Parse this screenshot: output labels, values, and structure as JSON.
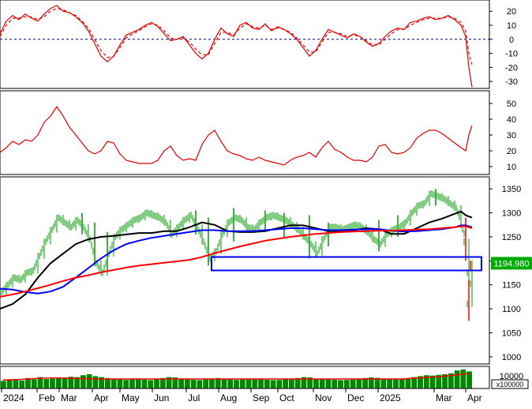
{
  "chart_data": [
    {
      "panel": "oscillator-top",
      "type": "line",
      "ylim": [
        -35,
        28
      ],
      "y_ticks": [
        "20",
        "10",
        "0",
        "-10",
        "-20",
        "-30"
      ],
      "y_tick_values": [
        20,
        10,
        0,
        -10,
        -20,
        -30
      ],
      "zero_line": "dashed",
      "series": [
        {
          "style": "solid",
          "color": "#e00000",
          "x": [
            0,
            8,
            16,
            24,
            32,
            40,
            48,
            56,
            64,
            72,
            80,
            88,
            96,
            104,
            112,
            120,
            128,
            136,
            144,
            152,
            160,
            168,
            176,
            184,
            192,
            200,
            208,
            216,
            224,
            232,
            240,
            248,
            256,
            264,
            272,
            280,
            288,
            296,
            304,
            312,
            320,
            328,
            336,
            344,
            352,
            360,
            368,
            376,
            384,
            392,
            400,
            408,
            416,
            424,
            432,
            440,
            448,
            456,
            464,
            472,
            480,
            488,
            496,
            504,
            512,
            520,
            528,
            536,
            544,
            552,
            560,
            568,
            576,
            584,
            590,
            594,
            598
          ],
          "values": [
            4,
            13,
            17,
            14,
            18,
            15,
            13,
            18,
            22,
            24,
            20,
            19,
            16,
            12,
            6,
            -3,
            -12,
            -16,
            -12,
            -4,
            3,
            5,
            7,
            10,
            12,
            9,
            4,
            -1,
            0,
            2,
            -4,
            -10,
            -14,
            -10,
            0,
            8,
            4,
            2,
            10,
            12,
            8,
            7,
            11,
            6,
            9,
            7,
            4,
            0,
            -6,
            -12,
            -8,
            0,
            7,
            5,
            3,
            1,
            4,
            2,
            -2,
            -5,
            -3,
            2,
            6,
            8,
            7,
            12,
            13,
            15,
            16,
            14,
            15,
            17,
            14,
            10,
            2,
            -20,
            -34
          ]
        },
        {
          "style": "dashed",
          "color": "#e00000",
          "x": [
            0,
            8,
            16,
            24,
            32,
            40,
            48,
            56,
            64,
            72,
            80,
            88,
            96,
            104,
            112,
            120,
            128,
            136,
            144,
            152,
            160,
            168,
            176,
            184,
            192,
            200,
            208,
            216,
            224,
            232,
            240,
            248,
            256,
            264,
            272,
            280,
            288,
            296,
            304,
            312,
            320,
            328,
            336,
            344,
            352,
            360,
            368,
            376,
            384,
            392,
            400,
            408,
            416,
            424,
            432,
            440,
            448,
            456,
            464,
            472,
            480,
            488,
            496,
            504,
            512,
            520,
            528,
            536,
            544,
            552,
            560,
            568,
            576,
            584,
            590,
            594,
            598
          ],
          "values": [
            2,
            10,
            15,
            15,
            16,
            16,
            14,
            16,
            20,
            22,
            21,
            19,
            17,
            13,
            8,
            0,
            -8,
            -13,
            -12,
            -6,
            1,
            4,
            6,
            9,
            11,
            10,
            6,
            1,
            0,
            1,
            -2,
            -7,
            -11,
            -11,
            -3,
            5,
            5,
            3,
            8,
            11,
            9,
            8,
            10,
            7,
            8,
            7,
            5,
            1,
            -4,
            -9,
            -9,
            -2,
            5,
            5,
            4,
            2,
            3,
            2,
            -1,
            -4,
            -4,
            0,
            4,
            7,
            7,
            10,
            12,
            14,
            15,
            15,
            15,
            16,
            15,
            12,
            6,
            -10,
            -18
          ]
        }
      ]
    },
    {
      "panel": "oscillator-middle",
      "type": "line",
      "ylim": [
        5,
        58
      ],
      "y_ticks": [
        "50",
        "40",
        "30",
        "20",
        "10"
      ],
      "y_tick_values": [
        50,
        40,
        30,
        20,
        10
      ],
      "series": [
        {
          "style": "solid",
          "color": "#e00000",
          "x": [
            0,
            8,
            16,
            24,
            32,
            40,
            48,
            56,
            64,
            72,
            80,
            88,
            96,
            104,
            112,
            120,
            128,
            136,
            144,
            152,
            160,
            168,
            176,
            184,
            192,
            200,
            208,
            216,
            224,
            232,
            240,
            248,
            256,
            264,
            272,
            280,
            288,
            296,
            304,
            312,
            320,
            328,
            336,
            344,
            352,
            360,
            368,
            376,
            384,
            392,
            400,
            408,
            416,
            424,
            432,
            440,
            448,
            456,
            464,
            472,
            480,
            488,
            496,
            504,
            512,
            520,
            528,
            536,
            544,
            552,
            560,
            568,
            576,
            584,
            590,
            594,
            598
          ],
          "values": [
            19,
            22,
            26,
            24,
            27,
            26,
            30,
            38,
            42,
            48,
            42,
            35,
            30,
            25,
            20,
            18,
            20,
            26,
            25,
            18,
            14,
            13,
            12,
            12,
            12,
            14,
            20,
            23,
            17,
            14,
            15,
            14,
            24,
            30,
            33,
            26,
            20,
            18,
            17,
            15,
            14,
            16,
            14,
            13,
            12,
            11,
            14,
            16,
            17,
            19,
            16,
            22,
            26,
            21,
            19,
            16,
            14,
            14,
            13,
            16,
            23,
            24,
            19,
            18,
            19,
            22,
            28,
            31,
            33,
            33,
            31,
            28,
            25,
            22,
            20,
            30,
            36
          ]
        }
      ]
    },
    {
      "panel": "price",
      "type": "line",
      "ylim": [
        985,
        1375
      ],
      "y_ticks": [
        "1350",
        "1300",
        "1250",
        "1200",
        "1150",
        "1100",
        "1050",
        "1000"
      ],
      "y_tick_values": [
        1350,
        1300,
        1250,
        1200,
        1150,
        1100,
        1050,
        1000
      ],
      "last_value_label": "1194.980",
      "x_labels": [
        "2024",
        "Feb",
        "Mar",
        "Apr",
        "May",
        "Jun",
        "Jul",
        "Aug",
        "Sep",
        "Oct",
        "Nov",
        "Dec",
        "2025",
        "Mar",
        "Apr"
      ],
      "close": {
        "color": "#009900",
        "x": [
          0,
          8,
          16,
          24,
          32,
          40,
          48,
          56,
          64,
          72,
          80,
          88,
          96,
          104,
          112,
          120,
          128,
          136,
          144,
          152,
          160,
          168,
          176,
          184,
          192,
          200,
          208,
          216,
          224,
          232,
          240,
          248,
          256,
          264,
          272,
          280,
          288,
          296,
          304,
          312,
          320,
          328,
          336,
          344,
          352,
          360,
          368,
          376,
          384,
          392,
          400,
          408,
          416,
          424,
          432,
          440,
          448,
          456,
          464,
          472,
          480,
          488,
          496,
          504,
          512,
          520,
          528,
          536,
          544,
          552,
          560,
          568,
          576,
          584,
          590,
          594,
          598
        ],
        "values": [
          1135,
          1150,
          1165,
          1160,
          1175,
          1180,
          1210,
          1240,
          1265,
          1290,
          1280,
          1270,
          1285,
          1270,
          1245,
          1195,
          1175,
          1215,
          1250,
          1265,
          1275,
          1285,
          1290,
          1300,
          1295,
          1290,
          1280,
          1255,
          1270,
          1285,
          1295,
          1270,
          1240,
          1205,
          1220,
          1255,
          1280,
          1290,
          1285,
          1270,
          1265,
          1280,
          1290,
          1295,
          1290,
          1285,
          1275,
          1265,
          1250,
          1235,
          1215,
          1245,
          1270,
          1270,
          1265,
          1270,
          1275,
          1270,
          1260,
          1245,
          1235,
          1255,
          1265,
          1270,
          1280,
          1300,
          1315,
          1320,
          1340,
          1335,
          1330,
          1320,
          1310,
          1275,
          1240,
          1110,
          1195
        ]
      },
      "bar_range": {
        "color": "#009900",
        "x": [
          104,
          120,
          136,
          248,
          264,
          296,
          336,
          360,
          392,
          416,
          480,
          504,
          552,
          590,
          594,
          596
        ],
        "high": [
          1300,
          1280,
          1260,
          1305,
          1290,
          1310,
          1305,
          1300,
          1295,
          1280,
          1285,
          1295,
          1350,
          1290,
          1160,
          1200
        ],
        "low": [
          1255,
          1190,
          1180,
          1255,
          1190,
          1240,
          1265,
          1250,
          1205,
          1230,
          1220,
          1250,
          1315,
          1200,
          1075,
          1180
        ]
      },
      "series": [
        {
          "name": "",
          "color": "#000000",
          "x": [
            0,
            16,
            32,
            48,
            64,
            80,
            96,
            112,
            128,
            144,
            160,
            176,
            192,
            208,
            224,
            240,
            256,
            272,
            288,
            304,
            320,
            336,
            352,
            368,
            384,
            400,
            416,
            432,
            448,
            464,
            480,
            496,
            512,
            528,
            544,
            560,
            576,
            584,
            590,
            598
          ],
          "values": [
            1100,
            1110,
            1130,
            1165,
            1195,
            1215,
            1235,
            1245,
            1250,
            1252,
            1255,
            1258,
            1258,
            1262,
            1262,
            1270,
            1280,
            1275,
            1262,
            1260,
            1260,
            1262,
            1268,
            1274,
            1274,
            1268,
            1262,
            1262,
            1264,
            1268,
            1266,
            1256,
            1256,
            1268,
            1280,
            1288,
            1298,
            1303,
            1295,
            1290
          ]
        },
        {
          "name": "",
          "color": "#0000ff",
          "x": [
            0,
            16,
            32,
            48,
            64,
            80,
            96,
            112,
            128,
            144,
            160,
            176,
            192,
            208,
            224,
            240,
            256,
            272,
            288,
            304,
            320,
            336,
            352,
            368,
            384,
            400,
            416,
            432,
            448,
            464,
            480,
            496,
            512,
            528,
            544,
            560,
            576,
            584,
            590,
            598
          ],
          "values": [
            1142,
            1140,
            1135,
            1132,
            1136,
            1146,
            1165,
            1185,
            1205,
            1222,
            1235,
            1242,
            1248,
            1252,
            1256,
            1260,
            1264,
            1264,
            1262,
            1262,
            1262,
            1264,
            1266,
            1268,
            1268,
            1266,
            1264,
            1264,
            1265,
            1266,
            1266,
            1263,
            1261,
            1262,
            1264,
            1266,
            1270,
            1274,
            1274,
            1270
          ]
        },
        {
          "name": "",
          "color": "#ff0000",
          "x": [
            0,
            16,
            32,
            48,
            64,
            80,
            96,
            112,
            128,
            144,
            160,
            176,
            192,
            208,
            224,
            240,
            256,
            272,
            288,
            304,
            320,
            336,
            352,
            368,
            384,
            400,
            416,
            432,
            448,
            464,
            480,
            496,
            512,
            528,
            544,
            560,
            576,
            584,
            590,
            598
          ],
          "values": [
            1125,
            1130,
            1136,
            1143,
            1150,
            1158,
            1165,
            1170,
            1176,
            1181,
            1186,
            1190,
            1193,
            1196,
            1199,
            1202,
            1208,
            1216,
            1223,
            1230,
            1236,
            1242,
            1246,
            1250,
            1253,
            1256,
            1258,
            1260,
            1261,
            1262,
            1263,
            1263,
            1264,
            1265,
            1266,
            1268,
            1270,
            1272,
            1272,
            1268
          ]
        }
      ],
      "highlight_box": {
        "y_top": 1208,
        "y_bottom": 1180,
        "x_start": 268,
        "x_end": 610,
        "color": "#0000ff"
      }
    },
    {
      "panel": "volume",
      "type": "bar",
      "y_tick_label": "10000",
      "unit_label": "x100000",
      "ma_color": "#ff0000",
      "values": [
        0.4,
        0.45,
        0.5,
        0.42,
        0.55,
        0.48,
        0.6,
        0.5,
        0.52,
        0.58,
        0.55,
        0.62,
        0.6,
        0.7,
        0.75,
        0.65,
        0.6,
        0.55,
        0.5,
        0.48,
        0.45,
        0.5,
        0.52,
        0.47,
        0.44,
        0.5,
        0.55,
        0.6,
        0.58,
        0.5,
        0.48,
        0.46,
        0.44,
        0.5,
        0.52,
        0.55,
        0.5,
        0.48,
        0.45,
        0.47,
        0.5,
        0.52,
        0.48,
        0.46,
        0.44,
        0.45,
        0.48,
        0.5,
        0.55,
        0.6,
        0.58,
        0.52,
        0.5,
        0.48,
        0.46,
        0.44,
        0.45,
        0.47,
        0.5,
        0.55,
        0.58,
        0.56,
        0.52,
        0.5,
        0.48,
        0.5,
        0.55,
        0.6,
        0.65,
        0.7,
        0.68,
        0.72,
        0.75,
        0.8,
        0.95,
        1.0,
        0.9
      ],
      "ma_values": [
        0.45,
        0.46,
        0.47,
        0.48,
        0.5,
        0.52,
        0.54,
        0.55,
        0.56,
        0.56,
        0.55,
        0.54,
        0.53,
        0.52,
        0.51,
        0.5,
        0.5,
        0.5,
        0.5,
        0.5,
        0.5,
        0.5,
        0.5,
        0.5,
        0.5,
        0.5,
        0.5,
        0.5,
        0.5,
        0.5,
        0.5,
        0.5,
        0.5,
        0.5,
        0.5,
        0.5,
        0.5,
        0.5,
        0.5,
        0.5,
        0.5,
        0.5,
        0.5,
        0.5,
        0.5,
        0.5,
        0.5,
        0.5,
        0.5,
        0.5,
        0.5,
        0.5,
        0.5,
        0.5,
        0.5,
        0.5,
        0.5,
        0.5,
        0.5,
        0.5,
        0.5,
        0.5,
        0.5,
        0.5,
        0.5,
        0.5,
        0.52,
        0.54,
        0.56,
        0.58,
        0.6,
        0.62,
        0.65,
        0.68,
        0.72,
        0.76,
        0.78
      ]
    }
  ]
}
